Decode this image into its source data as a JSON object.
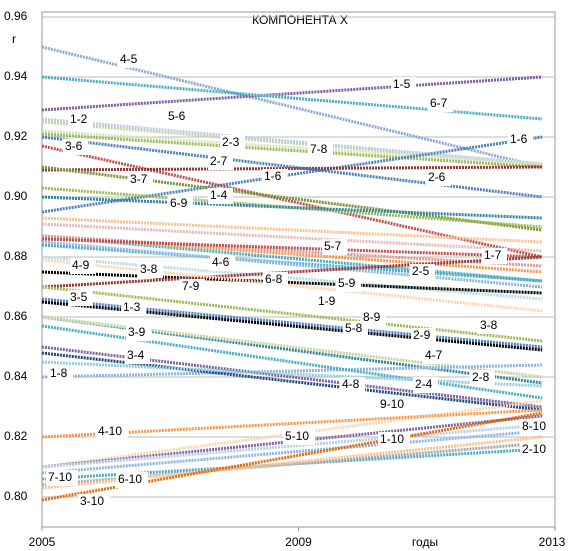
{
  "chart_data": {
    "type": "line",
    "title": "КОМПОНЕНТА X",
    "ylabel": "r",
    "xlabel": "годы",
    "x": [
      2005,
      2012.8
    ],
    "xlim": [
      2005,
      2013
    ],
    "xticks": [
      2005,
      2009,
      2013
    ],
    "ylim": [
      0.79,
      0.96
    ],
    "yticks": [
      {
        "value": 0.8,
        "label": "0.80"
      },
      0.82,
      0.84,
      0.86,
      0.88,
      {
        "value": 0.9,
        "label": "0.90"
      },
      0.92,
      0.94,
      0.96
    ],
    "grid": true,
    "series": [
      {
        "name": "4-5",
        "color": "#8fa8d8",
        "values": [
          0.95,
          0.91
        ]
      },
      {
        "name": "1-5",
        "color": "#7f5f9f",
        "values": [
          0.929,
          0.94
        ]
      },
      {
        "name": "6-7",
        "color": "#4bacc6",
        "values": [
          0.94,
          0.926
        ]
      },
      {
        "name": "1-2",
        "color": "#c3d69b",
        "values": [
          0.925,
          0.911
        ]
      },
      {
        "name": "5-6",
        "color": "#b9cde5",
        "values": [
          0.926,
          0.911
        ]
      },
      {
        "name": "2-3",
        "color": "#d7e4bd",
        "values": [
          0.922,
          0.911
        ]
      },
      {
        "name": "7-8",
        "color": "#9bbb59",
        "values": [
          0.921,
          0.91
        ]
      },
      {
        "name": "1-6",
        "color": "#4f81bd",
        "values": [
          0.895,
          0.92
        ]
      },
      {
        "name": "3-6",
        "color": "#c0504d",
        "values": [
          0.917,
          0.88
        ]
      },
      {
        "name": "2-7",
        "color": "#953735",
        "values": [
          0.909,
          0.91
        ]
      },
      {
        "name": "2-6",
        "color": "#4f81bd",
        "values": [
          0.92,
          0.9
        ]
      },
      {
        "name": "3-7",
        "color": "#77933c",
        "values": [
          0.91,
          0.889
        ]
      },
      {
        "name": "1-4",
        "color": "#9bbb59",
        "values": [
          0.903,
          0.89
        ]
      },
      {
        "name": "6-9",
        "color": "#31859c",
        "values": [
          0.9,
          0.893
        ]
      },
      {
        "name": "5-7",
        "color": "#fac090",
        "values": [
          0.893,
          0.885
        ]
      },
      {
        "name": "1-7",
        "color": "#e6b9b8",
        "values": [
          0.891,
          0.882
        ]
      },
      {
        "name": "4-9",
        "color": "#4bacc6",
        "values": [
          0.887,
          0.872
        ]
      },
      {
        "name": "3-8",
        "color": "#f79646",
        "values": [
          0.887,
          0.875
        ]
      },
      {
        "name": "4-6",
        "color": "#d99694",
        "values": [
          0.887,
          0.877
        ]
      },
      {
        "name": "2-5",
        "color": "#c0504d",
        "values": [
          0.886,
          0.88
        ]
      },
      {
        "name": "6-8",
        "color": "#4bacc6",
        "values": [
          0.884,
          0.872
        ]
      },
      {
        "name": "5-9",
        "color": "#8eb4e3",
        "values": [
          0.885,
          0.87
        ]
      },
      {
        "name": "7-9",
        "color": "#b7dee8",
        "values": [
          0.88,
          0.866
        ]
      },
      {
        "name": "3-5",
        "color": "#000000",
        "values": [
          0.875,
          0.868
        ]
      },
      {
        "name": "1-3",
        "color": "#953735",
        "values": [
          0.87,
          0.88
        ]
      },
      {
        "name": "8-9",
        "color": "#fcd5b4",
        "values": [
          0.879,
          0.862
        ]
      },
      {
        "name": "1-9",
        "color": "#9bbb59",
        "values": [
          0.87,
          0.852
        ]
      },
      {
        "name": "5-8",
        "color": "#4f81bd",
        "values": [
          0.866,
          0.85
        ]
      },
      {
        "name": "2-9",
        "color": "#000000",
        "values": [
          0.865,
          0.849
        ]
      },
      {
        "name": "3-9",
        "color": "#31859c",
        "values": [
          0.86,
          0.838
        ]
      },
      {
        "name": "4-7",
        "color": "#c3d69b",
        "values": [
          0.86,
          0.84
        ]
      },
      {
        "name": "3-4",
        "color": "#8064a2",
        "values": [
          0.85,
          0.83
        ]
      },
      {
        "name": "1-8",
        "color": "#8eb4e3",
        "values": [
          0.84,
          0.844
        ]
      },
      {
        "name": "4-8",
        "color": "#1f497d",
        "values": [
          0.848,
          0.829
        ]
      },
      {
        "name": "2-4",
        "color": "#4bacc6",
        "values": [
          0.857,
          0.833
        ]
      },
      {
        "name": "2-8",
        "color": "#93cddd",
        "values": [
          0.845,
          0.837
        ]
      },
      {
        "name": "9-10",
        "color": "#fcd5b4",
        "values": [
          0.81,
          0.832
        ]
      },
      {
        "name": "4-10",
        "color": "#f79646",
        "values": [
          0.82,
          0.829
        ]
      },
      {
        "name": "5-10",
        "color": "#8064a2",
        "values": [
          0.81,
          0.827
        ]
      },
      {
        "name": "1-10",
        "color": "#8eb4e3",
        "values": [
          0.808,
          0.822
        ]
      },
      {
        "name": "8-10",
        "color": "#b9cde5",
        "values": [
          0.81,
          0.824
        ]
      },
      {
        "name": "2-10",
        "color": "#4bacc6",
        "values": [
          0.806,
          0.816
        ]
      },
      {
        "name": "7-10",
        "color": "#a6a6a6",
        "values": [
          0.804,
          0.818
        ]
      },
      {
        "name": "6-10",
        "color": "#fac090",
        "values": [
          0.803,
          0.82
        ]
      },
      {
        "name": "3-10",
        "color": "#e46c0a",
        "values": [
          0.799,
          0.828
        ]
      }
    ]
  }
}
